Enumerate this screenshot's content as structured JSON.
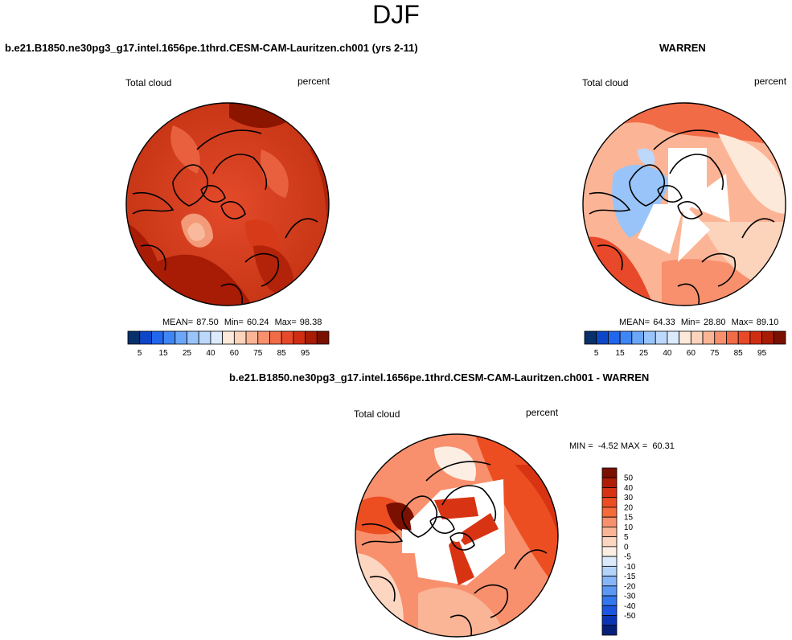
{
  "page": {
    "title": "DJF"
  },
  "panels": {
    "model": {
      "title": "b.e21.B1850.ne30pg3_g17.intel.1656pe.1thrd.CESM-CAM-Lauritzen.ch001 (yrs 2-11)",
      "variable": "Total cloud",
      "units": "percent",
      "stats": {
        "mean_label": "MEAN=",
        "mean": "87.50",
        "min_label": "Min=",
        "min": "60.24",
        "max_label": "Max=",
        "max": "98.38"
      }
    },
    "obs": {
      "title": "WARREN",
      "variable": "Total cloud",
      "units": "percent",
      "stats": {
        "mean_label": "MEAN=",
        "mean": "64.33",
        "min_label": "Min=",
        "min": "28.80",
        "max_label": "Max=",
        "max": "89.10"
      }
    },
    "diff": {
      "title": "b.e21.B1850.ne30pg3_g17.intel.1656pe.1thrd.CESM-CAM-Lauritzen.ch001 - WARREN",
      "variable": "Total cloud",
      "units": "percent",
      "stats_text": "MIN =  -4.52 MAX =  60.31"
    }
  },
  "chart_data": [
    {
      "type": "heatmap",
      "projection": "north polar stereographic",
      "field": "Total cloud",
      "units": "percent",
      "mean": 87.5,
      "min": 60.24,
      "max": 98.38,
      "colorbar": {
        "levels": [
          5,
          10,
          15,
          20,
          25,
          30,
          35,
          40,
          50,
          60,
          65,
          70,
          75,
          80,
          85,
          90,
          95
        ],
        "tick_labels": [
          "5",
          "15",
          "25",
          "40",
          "60",
          "75",
          "85",
          "95"
        ],
        "colors": [
          "#08306b",
          "#0d47c8",
          "#2166ec",
          "#3f86f5",
          "#6ca6f8",
          "#98c4fa",
          "#bcd8fb",
          "#dcebfc",
          "#fde9d9",
          "#fcd3bb",
          "#fbb596",
          "#f8906d",
          "#f26b47",
          "#e8492a",
          "#d02e12",
          "#a81b05",
          "#7a1000"
        ]
      }
    },
    {
      "type": "heatmap",
      "projection": "north polar stereographic",
      "field": "Total cloud",
      "units": "percent",
      "mean": 64.33,
      "min": 28.8,
      "max": 89.1,
      "colorbar": {
        "levels": [
          5,
          10,
          15,
          20,
          25,
          30,
          35,
          40,
          50,
          60,
          65,
          70,
          75,
          80,
          85,
          90,
          95
        ],
        "tick_labels": [
          "5",
          "15",
          "25",
          "40",
          "60",
          "75",
          "85",
          "95"
        ],
        "colors": [
          "#08306b",
          "#0d47c8",
          "#2166ec",
          "#3f86f5",
          "#6ca6f8",
          "#98c4fa",
          "#bcd8fb",
          "#dcebfc",
          "#fde9d9",
          "#fcd3bb",
          "#fbb596",
          "#f8906d",
          "#f26b47",
          "#e8492a",
          "#d02e12",
          "#a81b05",
          "#7a1000"
        ]
      }
    },
    {
      "type": "heatmap",
      "projection": "north polar stereographic",
      "field": "Total cloud",
      "units": "percent",
      "min": -4.52,
      "max": 60.31,
      "colorbar": {
        "orientation": "vertical",
        "tick_labels": [
          "50",
          "40",
          "30",
          "20",
          "15",
          "10",
          "5",
          "0",
          "-5",
          "-10",
          "-15",
          "-20",
          "-30",
          "-40",
          "-50"
        ],
        "colors": [
          "#7a1000",
          "#b01e06",
          "#d83413",
          "#ec4e22",
          "#f56c3a",
          "#f8906d",
          "#fab496",
          "#fcd6c1",
          "#fdeee4",
          "#dcebfc",
          "#b4d3fa",
          "#86b6f7",
          "#5a98f3",
          "#3377ee",
          "#1a56e0",
          "#0b35b5",
          "#06207a"
        ]
      }
    }
  ]
}
